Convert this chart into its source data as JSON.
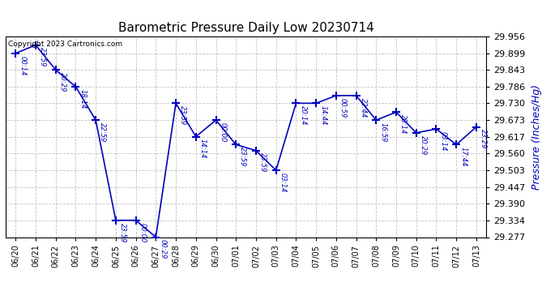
{
  "title": "Barometric Pressure Daily Low 20230714",
  "ylabel": "Pressure (Inches/Hg)",
  "copyright": "Copyright 2023 Cartronics.com",
  "line_color": "#0000bb",
  "marker_color": "#0000bb",
  "title_color": "#000000",
  "ylabel_color": "#0000bb",
  "copyright_color": "#000000",
  "background_color": "#ffffff",
  "grid_color": "#bbbbbb",
  "dates": [
    "06/20",
    "06/21",
    "06/22",
    "06/23",
    "06/24",
    "06/25",
    "06/26",
    "06/27",
    "06/28",
    "06/29",
    "06/30",
    "07/01",
    "07/02",
    "07/03",
    "07/04",
    "07/05",
    "07/06",
    "07/07",
    "07/08",
    "07/09",
    "07/10",
    "07/11",
    "07/12",
    "07/13"
  ],
  "values": [
    29.899,
    29.927,
    29.843,
    29.786,
    29.673,
    29.334,
    29.334,
    29.277,
    29.73,
    29.617,
    29.673,
    29.59,
    29.57,
    29.503,
    29.73,
    29.73,
    29.756,
    29.756,
    29.673,
    29.7,
    29.63,
    29.643,
    29.59,
    29.65
  ],
  "times": [
    "00:14",
    "23:59",
    "20:29",
    "18:14",
    "22:59",
    "23:59",
    "00:00",
    "00:29",
    "23:59",
    "14:14",
    "00:00",
    "23:59",
    "23:59",
    "03:14",
    "20:14",
    "14:44",
    "00:59",
    "22:44",
    "16:59",
    "20:14",
    "20:29",
    "03:14",
    "17:44",
    "23:29"
  ],
  "ylim_min": 29.277,
  "ylim_max": 29.956,
  "yticks": [
    29.277,
    29.334,
    29.39,
    29.447,
    29.503,
    29.56,
    29.617,
    29.673,
    29.73,
    29.786,
    29.843,
    29.899,
    29.956
  ]
}
